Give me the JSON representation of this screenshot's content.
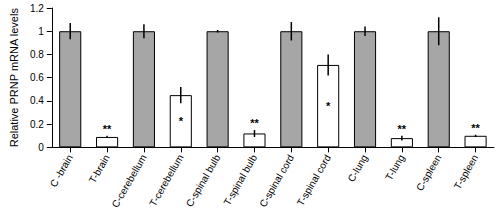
{
  "chart_data": {
    "type": "bar",
    "y_label": "Relative PRNP mRNA levels",
    "categories": [
      "C -brain",
      "T-brain",
      "C-cerebellum",
      "T-cerebellum",
      "C-spinal bulb",
      "T-spinal bulb",
      "C-spinal cord",
      "T-spinal cord",
      "C-lung",
      "T-lung",
      "C-spleen",
      "T-spleen"
    ],
    "values": [
      1,
      0.09,
      1,
      0.45,
      1,
      0.12,
      1,
      0.71,
      1,
      0.08,
      1,
      0.1
    ],
    "errors": [
      0.07,
      0.01,
      0.06,
      0.07,
      0.01,
      0.03,
      0.08,
      0.09,
      0.04,
      0.02,
      0.12,
      0.01
    ],
    "colors": [
      "#a6a6a6",
      "#ffffff",
      "#a6a6a6",
      "#ffffff",
      "#a6a6a6",
      "#ffffff",
      "#a6a6a6",
      "#ffffff",
      "#a6a6a6",
      "#ffffff",
      "#a6a6a6",
      "#ffffff"
    ],
    "annotations": [
      {
        "category": "T-brain",
        "text": "**"
      },
      {
        "category": "T-cerebellum",
        "text": "*"
      },
      {
        "category": "T-spinal bulb",
        "text": "**"
      },
      {
        "category": "T-spinal cord",
        "text": "*"
      },
      {
        "category": "T-lung",
        "text": "**"
      },
      {
        "category": "T-spleen",
        "text": "**"
      }
    ],
    "ylim": [
      0,
      1.2
    ],
    "yticks": [
      0,
      0.2,
      0.4,
      0.6,
      0.8,
      1,
      1.2
    ],
    "grid": false
  }
}
